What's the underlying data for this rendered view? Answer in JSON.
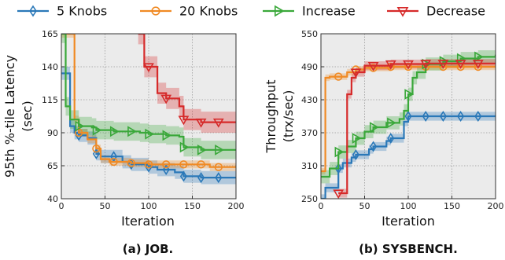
{
  "legend": [
    {
      "name": "5 Knobs",
      "color": "#2a78b8",
      "marker": "diamond"
    },
    {
      "name": "20 Knobs",
      "color": "#f08a24",
      "marker": "circle"
    },
    {
      "name": "Increase",
      "color": "#3aa83a",
      "marker": "triangle-right"
    },
    {
      "name": "Decrease",
      "color": "#d62a2a",
      "marker": "triangle-down"
    }
  ],
  "chart_data": [
    {
      "type": "line",
      "caption": "(a) JOB.",
      "xlabel": "Iteration",
      "ylabel_lines": [
        "95th %-tile Latency",
        "(sec)"
      ],
      "xlim": [
        0,
        200
      ],
      "ylim": [
        40,
        165
      ],
      "xticks": [
        0,
        50,
        100,
        150,
        200
      ],
      "yticks": [
        40,
        65,
        90,
        115,
        140,
        165
      ],
      "grid": true,
      "step": true,
      "series": [
        {
          "name": "5 Knobs",
          "color": "#2a78b8",
          "marker": "diamond",
          "x": [
            0,
            10,
            15,
            20,
            25,
            30,
            40,
            45,
            60,
            70,
            80,
            100,
            110,
            130,
            140,
            160,
            180,
            200
          ],
          "y": [
            135,
            95,
            90,
            88,
            88,
            86,
            74,
            72,
            72,
            68,
            66,
            64,
            62,
            60,
            57,
            56,
            56,
            56
          ],
          "band": 5,
          "markers_x": [
            20,
            40,
            60,
            80,
            100,
            120,
            140,
            160,
            180
          ]
        },
        {
          "name": "20 Knobs",
          "color": "#f08a24",
          "marker": "circle",
          "x": [
            0,
            15,
            20,
            30,
            40,
            45,
            55,
            80,
            100,
            120,
            170,
            200
          ],
          "y": [
            165,
            100,
            90,
            85,
            78,
            70,
            68,
            67,
            66,
            66,
            64,
            64
          ],
          "band": 3,
          "markers_x": [
            20,
            40,
            60,
            80,
            100,
            120,
            140,
            160,
            180
          ]
        },
        {
          "name": "Increase",
          "color": "#3aa83a",
          "marker": "triangle-right",
          "x": [
            0,
            5,
            10,
            20,
            35,
            40,
            60,
            90,
            100,
            120,
            135,
            140,
            160,
            200
          ],
          "y": [
            165,
            110,
            100,
            95,
            94,
            92,
            91,
            90,
            89,
            88,
            87,
            79,
            77,
            77
          ],
          "band": 7,
          "markers_x": [
            20,
            40,
            60,
            80,
            100,
            120,
            140,
            160,
            180
          ]
        },
        {
          "name": "Decrease",
          "color": "#d62a2a",
          "marker": "triangle-down",
          "x": [
            88,
            95,
            110,
            120,
            135,
            140,
            160,
            200
          ],
          "y": [
            165,
            140,
            120,
            116,
            110,
            100,
            98,
            98
          ],
          "band": 8,
          "markers_x": [
            100,
            120,
            140,
            160,
            180
          ]
        }
      ]
    },
    {
      "type": "line",
      "caption": "(b) SYSBENCH.",
      "xlabel": "Iteration",
      "ylabel_lines": [
        "Throughput",
        "(trx/sec)"
      ],
      "xlim": [
        0,
        200
      ],
      "ylim": [
        250,
        550
      ],
      "xticks": [
        0,
        50,
        100,
        150,
        200
      ],
      "yticks": [
        250,
        310,
        370,
        430,
        490,
        550
      ],
      "grid": true,
      "step": true,
      "series": [
        {
          "name": "5 Knobs",
          "color": "#2a78b8",
          "marker": "diamond",
          "x": [
            0,
            5,
            20,
            25,
            35,
            40,
            55,
            60,
            75,
            80,
            95,
            100,
            200
          ],
          "y": [
            250,
            270,
            305,
            315,
            325,
            330,
            340,
            345,
            355,
            360,
            390,
            400,
            402
          ],
          "band": 8,
          "markers_x": [
            20,
            40,
            60,
            80,
            100,
            120,
            140,
            160,
            180
          ]
        },
        {
          "name": "20 Knobs",
          "color": "#f08a24",
          "marker": "circle",
          "x": [
            0,
            5,
            10,
            30,
            40,
            50,
            80,
            120,
            200
          ],
          "y": [
            300,
            470,
            472,
            480,
            485,
            488,
            490,
            490,
            492
          ],
          "band": 6,
          "markers_x": [
            20,
            40,
            60,
            80,
            100,
            120,
            140,
            160,
            180
          ]
        },
        {
          "name": "Increase",
          "color": "#3aa83a",
          "marker": "triangle-right",
          "x": [
            0,
            10,
            20,
            30,
            40,
            50,
            60,
            75,
            90,
            95,
            100,
            105,
            110,
            120,
            140,
            160,
            180,
            200
          ],
          "y": [
            290,
            305,
            335,
            345,
            360,
            372,
            380,
            388,
            395,
            410,
            440,
            470,
            480,
            495,
            500,
            505,
            508,
            512
          ],
          "band": 12,
          "markers_x": [
            20,
            40,
            60,
            80,
            100,
            120,
            140,
            160,
            180
          ]
        },
        {
          "name": "Decrease",
          "color": "#d62a2a",
          "marker": "triangle-down",
          "x": [
            20,
            25,
            30,
            35,
            40,
            50,
            80,
            120,
            200
          ],
          "y": [
            260,
            260,
            440,
            470,
            480,
            492,
            495,
            496,
            496
          ],
          "band": 8,
          "markers_x": [
            20,
            40,
            60,
            80,
            100,
            120,
            140,
            160,
            180
          ]
        }
      ]
    }
  ]
}
